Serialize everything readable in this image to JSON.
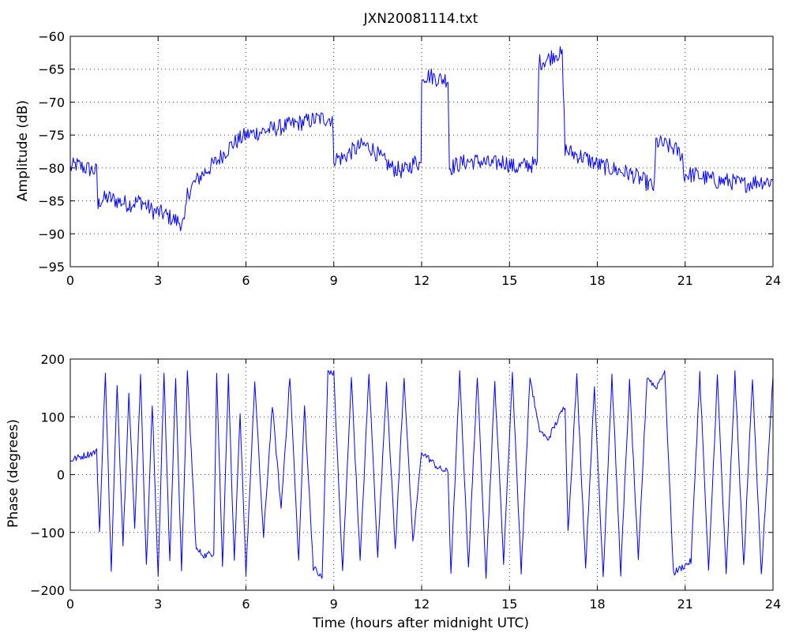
{
  "chart_data": [
    {
      "type": "line",
      "title": "JXN20081114.txt",
      "xlabel": "",
      "ylabel": "Amplitude (dB)",
      "xlim": [
        0,
        24
      ],
      "ylim": [
        -95,
        -60
      ],
      "xticks": [
        0,
        3,
        6,
        9,
        12,
        15,
        18,
        21,
        24
      ],
      "yticks": [
        -95,
        -90,
        -85,
        -80,
        -75,
        -70,
        -65,
        -60
      ],
      "grid": true,
      "color": "#0000ff",
      "series": [
        {
          "name": "",
          "x": [
            0,
            0.2,
            0.5,
            0.9,
            0.95,
            1.0,
            1.3,
            1.6,
            2.0,
            2.4,
            2.8,
            3.2,
            3.6,
            3.9,
            4.0,
            4.2,
            4.5,
            5.0,
            5.5,
            6.0,
            6.5,
            7.0,
            7.5,
            8.0,
            8.5,
            8.95,
            9.0,
            9.3,
            9.6,
            10.0,
            10.3,
            10.6,
            11.0,
            11.4,
            11.8,
            11.98,
            12.0,
            12.3,
            12.6,
            12.9,
            12.95,
            13.2,
            13.6,
            14.0,
            14.4,
            14.8,
            15.2,
            15.6,
            15.95,
            16.0,
            16.3,
            16.6,
            16.8,
            16.9,
            17.0,
            17.3,
            17.6,
            18.0,
            18.4,
            18.8,
            19.2,
            19.6,
            19.95,
            20.0,
            20.3,
            20.6,
            20.9,
            20.95,
            21.3,
            21.7,
            22.1,
            22.5,
            23.0,
            23.5,
            24.0
          ],
          "values": [
            -80,
            -79.5,
            -80,
            -80.5,
            -86,
            -85,
            -84.5,
            -85,
            -85.5,
            -85,
            -86.5,
            -87,
            -88,
            -88.5,
            -84,
            -82.5,
            -81,
            -79,
            -76.5,
            -75,
            -74.5,
            -74,
            -73.5,
            -73,
            -72.5,
            -72.5,
            -78.5,
            -78.5,
            -77.5,
            -76.5,
            -77,
            -78.5,
            -80,
            -80.5,
            -79,
            -79.5,
            -66,
            -66,
            -66.5,
            -66.5,
            -80,
            -79.5,
            -79,
            -79,
            -79.5,
            -79,
            -80,
            -79.5,
            -79.5,
            -64,
            -63.5,
            -62.5,
            -63,
            -77,
            -77.5,
            -78,
            -78.5,
            -79.5,
            -80,
            -80.5,
            -81,
            -82,
            -83,
            -76,
            -76.5,
            -77,
            -78,
            -81,
            -81,
            -81.5,
            -82,
            -82,
            -82.5,
            -82,
            -82
          ]
        }
      ]
    },
    {
      "type": "line",
      "title": "",
      "xlabel": "Time (hours after midnight UTC)",
      "ylabel": "Phase (degrees)",
      "xlim": [
        0,
        24
      ],
      "ylim": [
        -200,
        200
      ],
      "xticks": [
        0,
        3,
        6,
        9,
        12,
        15,
        18,
        21,
        24
      ],
      "yticks": [
        -200,
        -100,
        0,
        100,
        200
      ],
      "grid": true,
      "color": "#0000ff",
      "series": [
        {
          "name": "",
          "x": [
            0,
            0.3,
            0.6,
            0.9,
            1.0,
            1.2,
            1.4,
            1.6,
            1.8,
            2.0,
            2.2,
            2.4,
            2.6,
            2.8,
            3.0,
            3.2,
            3.4,
            3.6,
            3.8,
            4.0,
            4.3,
            4.6,
            4.9,
            5.0,
            5.2,
            5.4,
            5.6,
            5.8,
            6.0,
            6.3,
            6.6,
            6.9,
            7.2,
            7.5,
            7.8,
            8.0,
            8.3,
            8.6,
            8.8,
            9.0,
            9.3,
            9.6,
            9.9,
            10.2,
            10.5,
            10.8,
            11.1,
            11.4,
            11.7,
            12.0,
            12.3,
            12.6,
            12.9,
            13.0,
            13.3,
            13.6,
            13.9,
            14.2,
            14.5,
            14.8,
            15.1,
            15.4,
            15.7,
            16.0,
            16.3,
            16.6,
            16.9,
            17.0,
            17.3,
            17.6,
            17.9,
            18.2,
            18.5,
            18.8,
            19.1,
            19.4,
            19.7,
            20.0,
            20.3,
            20.6,
            20.9,
            21.2,
            21.5,
            21.8,
            22.1,
            22.4,
            22.7,
            23.0,
            23.3,
            23.6,
            24.0
          ],
          "values": [
            25,
            30,
            35,
            40,
            -100,
            180,
            -170,
            160,
            -120,
            140,
            -90,
            170,
            -160,
            120,
            -175,
            175,
            -150,
            170,
            -170,
            175,
            -130,
            -140,
            -135,
            175,
            -160,
            170,
            -150,
            100,
            -170,
            160,
            -110,
            120,
            -60,
            170,
            -150,
            120,
            -160,
            -180,
            180,
            175,
            -170,
            170,
            -150,
            175,
            -140,
            160,
            -130,
            170,
            -120,
            40,
            25,
            10,
            5,
            -170,
            175,
            -160,
            170,
            -175,
            160,
            -150,
            175,
            -170,
            170,
            80,
            60,
            90,
            120,
            -100,
            170,
            -160,
            150,
            -175,
            170,
            -170,
            160,
            -150,
            170,
            150,
            180,
            -170,
            -160,
            -150,
            175,
            -170,
            170,
            -175,
            175,
            -160,
            170,
            -175,
            170
          ]
        }
      ]
    }
  ]
}
